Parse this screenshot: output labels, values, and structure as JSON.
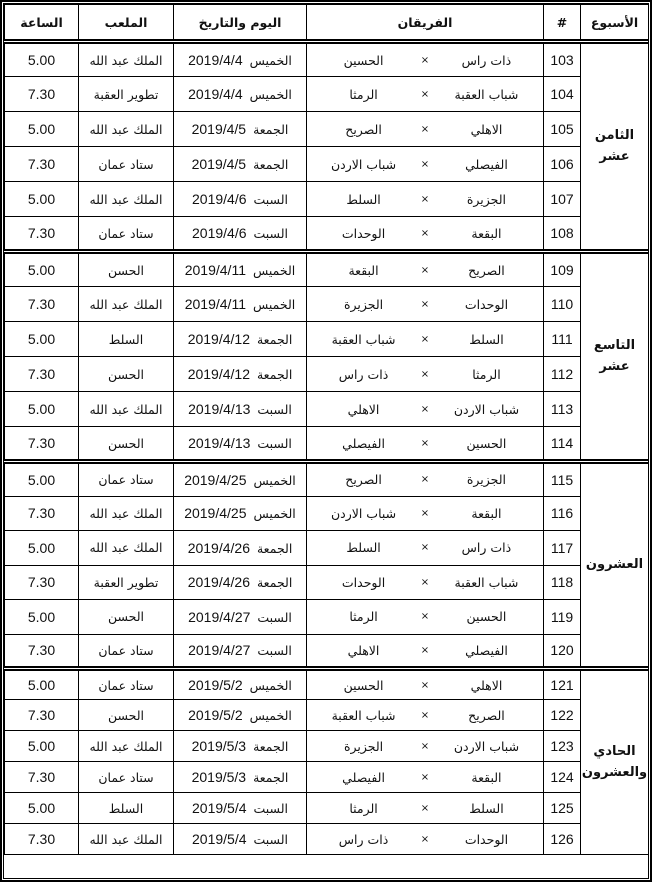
{
  "headers": {
    "week": "الأسبوع",
    "num": "#",
    "teams": "الفريقان",
    "date": "اليوم والتاريخ",
    "stadium": "الملعب",
    "time": "الساعة"
  },
  "vs_symbol": "×",
  "groups": [
    {
      "week": "الثامن عشر",
      "matches": [
        {
          "num": "103",
          "team1": "ذات راس",
          "team2": "الحسين",
          "day": "الخميس",
          "date": "2019/4/4",
          "stadium": "الملك عبد الله",
          "time": "5.00"
        },
        {
          "num": "104",
          "team1": "شباب العقبة",
          "team2": "الرمثا",
          "day": "الخميس",
          "date": "2019/4/4",
          "stadium": "تطوير العقبة",
          "time": "7.30"
        },
        {
          "num": "105",
          "team1": "الاهلي",
          "team2": "الصريح",
          "day": "الجمعة",
          "date": "2019/4/5",
          "stadium": "الملك عبد الله",
          "time": "5.00"
        },
        {
          "num": "106",
          "team1": "الفيصلي",
          "team2": "شباب الاردن",
          "day": "الجمعة",
          "date": "2019/4/5",
          "stadium": "ستاد عمان",
          "time": "7.30"
        },
        {
          "num": "107",
          "team1": "الجزيرة",
          "team2": "السلط",
          "day": "السبت",
          "date": "2019/4/6",
          "stadium": "الملك عبد الله",
          "time": "5.00"
        },
        {
          "num": "108",
          "team1": "البقعة",
          "team2": "الوحدات",
          "day": "السبت",
          "date": "2019/4/6",
          "stadium": "ستاد عمان",
          "time": "7.30"
        }
      ]
    },
    {
      "week": "التاسع عشر",
      "matches": [
        {
          "num": "109",
          "team1": "الصريح",
          "team2": "البقعة",
          "day": "الخميس",
          "date": "2019/4/11",
          "stadium": "الحسن",
          "time": "5.00"
        },
        {
          "num": "110",
          "team1": "الوحدات",
          "team2": "الجزيرة",
          "day": "الخميس",
          "date": "2019/4/11",
          "stadium": "الملك عبد الله",
          "time": "7.30"
        },
        {
          "num": "111",
          "team1": "السلط",
          "team2": "شباب العقبة",
          "day": "الجمعة",
          "date": "2019/4/12",
          "stadium": "السلط",
          "time": "5.00"
        },
        {
          "num": "112",
          "team1": "الرمثا",
          "team2": "ذات راس",
          "day": "الجمعة",
          "date": "2019/4/12",
          "stadium": "الحسن",
          "time": "7.30"
        },
        {
          "num": "113",
          "team1": "شباب الاردن",
          "team2": "الاهلي",
          "day": "السبت",
          "date": "2019/4/13",
          "stadium": "الملك عبد الله",
          "time": "5.00"
        },
        {
          "num": "114",
          "team1": "الحسين",
          "team2": "الفيصلي",
          "day": "السبت",
          "date": "2019/4/13",
          "stadium": "الحسن",
          "time": "7.30"
        }
      ]
    },
    {
      "week": "العشرون",
      "matches": [
        {
          "num": "115",
          "team1": "الجزيرة",
          "team2": "الصريح",
          "day": "الخميس",
          "date": "2019/4/25",
          "stadium": "ستاد عمان",
          "time": "5.00"
        },
        {
          "num": "116",
          "team1": "البقعة",
          "team2": "شباب الاردن",
          "day": "الخميس",
          "date": "2019/4/25",
          "stadium": "الملك عبد الله",
          "time": "7.30"
        },
        {
          "num": "117",
          "team1": "ذات راس",
          "team2": "السلط",
          "day": "الجمعة",
          "date": "2019/4/26",
          "stadium": "الملك عبد الله",
          "time": "5.00"
        },
        {
          "num": "118",
          "team1": "شباب العقبة",
          "team2": "الوحدات",
          "day": "الجمعة",
          "date": "2019/4/26",
          "stadium": "تطوير العقبة",
          "time": "7.30"
        },
        {
          "num": "119",
          "team1": "الحسين",
          "team2": "الرمثا",
          "day": "السبت",
          "date": "2019/4/27",
          "stadium": "الحسن",
          "time": "5.00"
        },
        {
          "num": "120",
          "team1": "الفيصلي",
          "team2": "الاهلي",
          "day": "السبت",
          "date": "2019/4/27",
          "stadium": "ستاد عمان",
          "time": "7.30"
        }
      ]
    },
    {
      "week": "الحادي والعشرون",
      "matches": [
        {
          "num": "121",
          "team1": "الاهلي",
          "team2": "الحسين",
          "day": "الخميس",
          "date": "2019/5/2",
          "stadium": "ستاد عمان",
          "time": "5.00"
        },
        {
          "num": "122",
          "team1": "الصريح",
          "team2": "شباب العقبة",
          "day": "الخميس",
          "date": "2019/5/2",
          "stadium": "الحسن",
          "time": "7.30"
        },
        {
          "num": "123",
          "team1": "شباب الاردن",
          "team2": "الجزيرة",
          "day": "الجمعة",
          "date": "2019/5/3",
          "stadium": "الملك عبد الله",
          "time": "5.00"
        },
        {
          "num": "124",
          "team1": "البقعة",
          "team2": "الفيصلي",
          "day": "الجمعة",
          "date": "2019/5/3",
          "stadium": "ستاد عمان",
          "time": "7.30"
        },
        {
          "num": "125",
          "team1": "السلط",
          "team2": "الرمثا",
          "day": "السبت",
          "date": "2019/5/4",
          "stadium": "السلط",
          "time": "5.00"
        },
        {
          "num": "126",
          "team1": "الوحدات",
          "team2": "ذات راس",
          "day": "السبت",
          "date": "2019/5/4",
          "stadium": "الملك عبد الله",
          "time": "7.30"
        }
      ]
    }
  ]
}
